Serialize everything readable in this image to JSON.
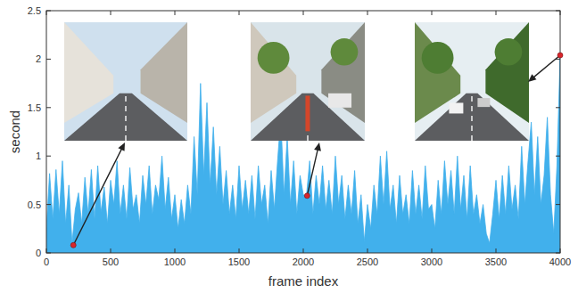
{
  "chart_data": {
    "type": "area",
    "x_label": "frame index",
    "y_label": "second",
    "color": "#41b0ec",
    "xlim": [
      0,
      4000
    ],
    "ylim": [
      0,
      2.5
    ],
    "xticks": [
      0,
      500,
      1000,
      1500,
      2000,
      2500,
      3000,
      3500,
      4000
    ],
    "yticks": [
      0,
      0.5,
      1,
      1.5,
      2,
      2.5
    ],
    "grid": false,
    "x": [
      0,
      25,
      50,
      75,
      100,
      125,
      150,
      175,
      200,
      225,
      250,
      275,
      300,
      325,
      350,
      375,
      400,
      425,
      450,
      475,
      500,
      525,
      550,
      575,
      600,
      625,
      650,
      675,
      700,
      725,
      750,
      775,
      800,
      825,
      850,
      875,
      900,
      925,
      950,
      975,
      1000,
      1025,
      1050,
      1075,
      1100,
      1125,
      1150,
      1175,
      1200,
      1225,
      1250,
      1275,
      1300,
      1325,
      1350,
      1375,
      1400,
      1425,
      1450,
      1475,
      1500,
      1525,
      1550,
      1575,
      1600,
      1625,
      1650,
      1675,
      1700,
      1725,
      1750,
      1775,
      1800,
      1825,
      1850,
      1875,
      1900,
      1925,
      1950,
      1975,
      2000,
      2025,
      2050,
      2075,
      2100,
      2125,
      2150,
      2175,
      2200,
      2225,
      2250,
      2275,
      2300,
      2325,
      2350,
      2375,
      2400,
      2425,
      2450,
      2475,
      2500,
      2525,
      2550,
      2575,
      2600,
      2625,
      2650,
      2675,
      2700,
      2725,
      2750,
      2775,
      2800,
      2825,
      2850,
      2875,
      2900,
      2925,
      2950,
      2975,
      3000,
      3025,
      3050,
      3075,
      3100,
      3125,
      3150,
      3175,
      3200,
      3225,
      3250,
      3275,
      3300,
      3325,
      3350,
      3375,
      3400,
      3425,
      3450,
      3475,
      3500,
      3525,
      3550,
      3575,
      3600,
      3625,
      3650,
      3675,
      3700,
      3725,
      3750,
      3775,
      3800,
      3825,
      3850,
      3875,
      3900,
      3925,
      3950,
      3975,
      4000
    ],
    "values": [
      0.25,
      0.82,
      0.35,
      0.86,
      0.4,
      0.95,
      0.3,
      0.7,
      0.1,
      0.45,
      0.62,
      0.3,
      0.78,
      0.4,
      0.86,
      0.35,
      0.9,
      0.42,
      0.68,
      0.3,
      0.75,
      0.5,
      0.95,
      0.4,
      0.7,
      0.35,
      0.88,
      0.45,
      0.6,
      0.3,
      0.8,
      0.5,
      0.9,
      0.4,
      0.7,
      0.55,
      1.0,
      0.45,
      0.78,
      0.35,
      0.6,
      0.25,
      0.55,
      0.3,
      0.7,
      0.4,
      1.2,
      0.6,
      1.75,
      0.8,
      1.55,
      0.7,
      1.3,
      0.6,
      1.1,
      0.5,
      0.85,
      0.4,
      0.7,
      0.35,
      0.9,
      0.45,
      0.75,
      0.4,
      0.8,
      0.35,
      0.9,
      0.5,
      0.7,
      0.3,
      0.85,
      0.45,
      0.95,
      1.4,
      0.6,
      1.2,
      0.5,
      0.95,
      0.4,
      0.8,
      0.6,
      0.59,
      0.95,
      0.4,
      0.8,
      0.5,
      0.9,
      0.45,
      0.75,
      0.4,
      1.0,
      0.5,
      0.8,
      0.35,
      0.7,
      0.4,
      0.85,
      0.3,
      0.6,
      0.12,
      0.5,
      0.25,
      0.7,
      0.4,
      1.0,
      0.5,
      1.05,
      0.45,
      0.7,
      0.3,
      0.8,
      0.4,
      0.6,
      0.3,
      0.85,
      0.4,
      0.7,
      0.35,
      0.9,
      0.45,
      0.5,
      0.25,
      0.75,
      0.4,
      0.95,
      0.5,
      0.85,
      0.4,
      1.0,
      0.45,
      0.8,
      0.35,
      0.9,
      0.4,
      0.6,
      0.3,
      0.5,
      0.2,
      0.1,
      0.4,
      0.75,
      0.35,
      0.8,
      0.4,
      0.9,
      0.45,
      0.7,
      0.35,
      1.1,
      0.5,
      0.95,
      1.35,
      0.6,
      1.2,
      0.5,
      0.8,
      1.4,
      0.6,
      0.2,
      0.9,
      2.04
    ],
    "highlights": [
      {
        "x": 210,
        "y": 0.08
      },
      {
        "x": 2030,
        "y": 0.59
      },
      {
        "x": 4000,
        "y": 2.04
      }
    ]
  }
}
